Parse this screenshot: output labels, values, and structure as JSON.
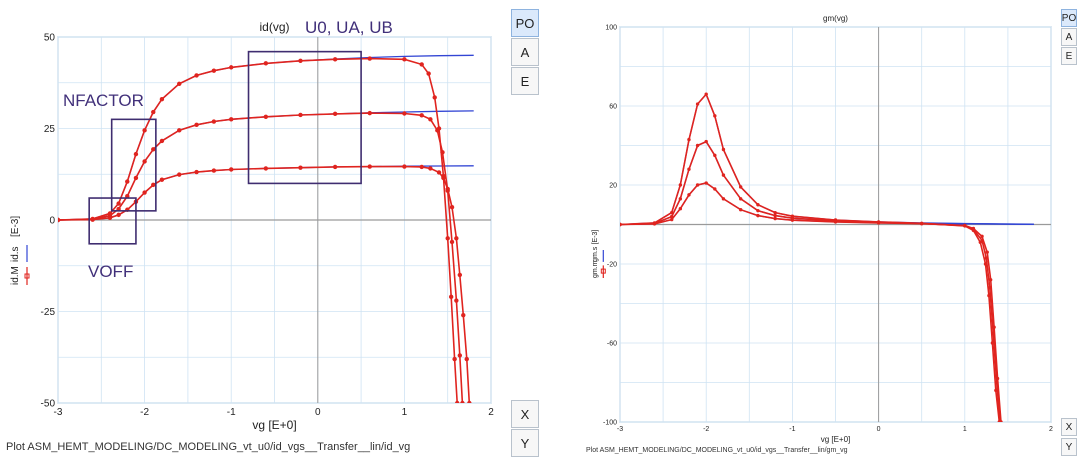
{
  "colors": {
    "model": "#3346d4",
    "measured": "#e0241f",
    "grid": "#cfe3f3",
    "axis": "#9a9a9a",
    "box": "#3f2d70",
    "annot": "#41307a"
  },
  "chart_data": [
    {
      "type": "line",
      "title": "id(vg)",
      "xlabel": "vg  [E+0]",
      "ylabel_legend": [
        "id.M",
        "id.s"
      ],
      "ylabel_unit": "[E-3]",
      "xlim": [
        -3,
        2
      ],
      "ylim": [
        -50,
        50
      ],
      "xticks": [
        -3,
        -2,
        -1,
        0,
        1,
        2
      ],
      "yticks": [
        -50,
        -25,
        0,
        25,
        50
      ],
      "grid": true,
      "annotations": [
        "U0, UA, UB",
        "NFACTOR",
        "VOFF"
      ],
      "series": [
        {
          "name": "id.s",
          "style": "model",
          "curves": [
            {
              "x": [
                -3,
                -2.6,
                -2.4,
                -2.3,
                -2.2,
                -2.1,
                -2.0,
                -1.9,
                -1.8,
                -1.6,
                -1.4,
                -1.2,
                -1.0,
                -0.6,
                -0.2,
                0.2,
                0.6,
                1.0,
                1.4,
                1.8
              ],
              "y": [
                0,
                0.1,
                0.6,
                1.4,
                2.8,
                5.0,
                7.5,
                9.6,
                11.0,
                12.4,
                13.1,
                13.5,
                13.8,
                14.1,
                14.3,
                14.5,
                14.6,
                14.7,
                14.75,
                14.8
              ]
            },
            {
              "x": [
                -3,
                -2.6,
                -2.4,
                -2.3,
                -2.2,
                -2.1,
                -2.0,
                -1.9,
                -1.8,
                -1.6,
                -1.4,
                -1.2,
                -1.0,
                -0.6,
                -0.2,
                0.2,
                0.6,
                1.0,
                1.4,
                1.8
              ],
              "y": [
                0,
                0.2,
                1.2,
                3.0,
                6.5,
                11.5,
                16.0,
                19.3,
                21.6,
                24.5,
                26.0,
                26.9,
                27.5,
                28.2,
                28.7,
                29.0,
                29.3,
                29.5,
                29.7,
                29.8
              ]
            },
            {
              "x": [
                -3,
                -2.6,
                -2.4,
                -2.3,
                -2.2,
                -2.1,
                -2.0,
                -1.9,
                -1.8,
                -1.6,
                -1.4,
                -1.2,
                -1.0,
                -0.6,
                -0.2,
                0.2,
                0.6,
                1.0,
                1.4,
                1.8
              ],
              "y": [
                0,
                0.3,
                1.8,
                4.5,
                10.5,
                18.0,
                24.5,
                29.5,
                33.0,
                37.2,
                39.5,
                40.8,
                41.7,
                42.8,
                43.5,
                44.0,
                44.4,
                44.7,
                44.9,
                45.0
              ]
            }
          ]
        },
        {
          "name": "id.M",
          "style": "measured",
          "curves": [
            {
              "x": [
                -3,
                -2.6,
                -2.4,
                -2.3,
                -2.2,
                -2.1,
                -2.0,
                -1.9,
                -1.8,
                -1.6,
                -1.4,
                -1.2,
                -1.0,
                -0.6,
                -0.2,
                0.2,
                0.6,
                1.0,
                1.2,
                1.3,
                1.4,
                1.45,
                1.5,
                1.55,
                1.6,
                1.64,
                1.68,
                1.72,
                1.75
              ],
              "y": [
                0,
                0.1,
                0.6,
                1.4,
                2.8,
                5.0,
                7.5,
                9.6,
                11.0,
                12.4,
                13.1,
                13.5,
                13.8,
                14.1,
                14.3,
                14.5,
                14.6,
                14.6,
                14.5,
                14.1,
                13.0,
                11.5,
                8.5,
                3.5,
                -5,
                -15,
                -26,
                -38,
                -50
              ]
            },
            {
              "x": [
                -3,
                -2.6,
                -2.4,
                -2.3,
                -2.2,
                -2.1,
                -2.0,
                -1.9,
                -1.8,
                -1.6,
                -1.4,
                -1.2,
                -1.0,
                -0.6,
                -0.2,
                0.2,
                0.6,
                1.0,
                1.2,
                1.3,
                1.38,
                1.44,
                1.5,
                1.55,
                1.6,
                1.64,
                1.67
              ],
              "y": [
                0,
                0.2,
                1.2,
                3.0,
                6.5,
                11.5,
                16.0,
                19.3,
                21.6,
                24.5,
                26.0,
                26.9,
                27.5,
                28.2,
                28.7,
                29.0,
                29.2,
                29.1,
                28.6,
                27.5,
                24.5,
                18.5,
                8.0,
                -6.0,
                -22.0,
                -37.0,
                -50
              ]
            },
            {
              "x": [
                -3,
                -2.6,
                -2.4,
                -2.3,
                -2.2,
                -2.1,
                -2.0,
                -1.9,
                -1.8,
                -1.6,
                -1.4,
                -1.2,
                -1.0,
                -0.6,
                -0.2,
                0.2,
                0.6,
                1.0,
                1.2,
                1.28,
                1.35,
                1.4,
                1.45,
                1.5,
                1.54,
                1.58,
                1.61
              ],
              "y": [
                0,
                0.3,
                1.8,
                4.5,
                10.5,
                18.0,
                24.5,
                29.5,
                33.0,
                37.2,
                39.5,
                40.8,
                41.7,
                42.8,
                43.5,
                43.9,
                44.1,
                43.9,
                42.5,
                40.0,
                33.5,
                25.0,
                12.0,
                -5.0,
                -21.0,
                -38.0,
                -50
              ]
            }
          ]
        }
      ]
    },
    {
      "type": "line",
      "title": "gm(vg)",
      "xlabel": "vg  [E+0]",
      "ylabel_legend": [
        "gm.m",
        "gm.s"
      ],
      "ylabel_unit": "[E-3]",
      "xlim": [
        -3,
        2
      ],
      "ylim": [
        -100,
        100
      ],
      "xticks": [
        -3,
        -2,
        -1,
        0,
        1,
        2
      ],
      "yticks": [
        -100,
        -60,
        -20,
        20,
        60,
        100
      ],
      "grid": true,
      "series": [
        {
          "name": "gm.s",
          "style": "model",
          "curves": [
            {
              "x": [
                -3,
                -2.6,
                -2.4,
                -2.3,
                -2.2,
                -2.1,
                -2.0,
                -1.9,
                -1.8,
                -1.6,
                -1.4,
                -1.2,
                -1.0,
                -0.5,
                0,
                0.5,
                1.0,
                1.4,
                1.8
              ],
              "y": [
                0,
                0.3,
                2.5,
                8,
                15,
                20,
                21,
                18,
                13,
                7.5,
                4.5,
                3,
                2.2,
                1.3,
                0.8,
                0.5,
                0.3,
                0.2,
                0.1
              ]
            },
            {
              "x": [
                -3,
                -2.6,
                -2.4,
                -2.3,
                -2.2,
                -2.1,
                -2.0,
                -1.9,
                -1.8,
                -1.6,
                -1.4,
                -1.2,
                -1.0,
                -0.5,
                0,
                0.5,
                1.0,
                1.4,
                1.8
              ],
              "y": [
                0,
                0.5,
                4,
                13,
                28,
                40,
                42,
                35,
                25,
                13,
                7,
                4.5,
                3.2,
                1.8,
                1.0,
                0.6,
                0.4,
                0.25,
                0.1
              ]
            },
            {
              "x": [
                -3,
                -2.6,
                -2.4,
                -2.3,
                -2.2,
                -2.1,
                -2.0,
                -1.9,
                -1.8,
                -1.6,
                -1.4,
                -1.2,
                -1.0,
                -0.5,
                0,
                0.5,
                1.0,
                1.4,
                1.8
              ],
              "y": [
                0,
                0.8,
                6,
                20,
                43,
                61,
                66,
                55,
                38,
                19,
                10,
                6,
                4.2,
                2.3,
                1.3,
                0.8,
                0.5,
                0.3,
                0.15
              ]
            }
          ]
        },
        {
          "name": "gm.m",
          "style": "measured",
          "curves": [
            {
              "x": [
                -3,
                -2.6,
                -2.4,
                -2.3,
                -2.2,
                -2.1,
                -2.0,
                -1.9,
                -1.8,
                -1.6,
                -1.4,
                -1.2,
                -1.0,
                -0.5,
                0,
                0.5,
                1.0,
                1.1,
                1.2,
                1.26,
                1.3,
                1.34,
                1.38,
                1.42
              ],
              "y": [
                0,
                0.3,
                2.5,
                8,
                15,
                20,
                21,
                18,
                13,
                7.5,
                4.5,
                3,
                2.2,
                1.3,
                0.8,
                0.4,
                -0.5,
                -2,
                -6,
                -14,
                -28,
                -52,
                -78,
                -100
              ]
            },
            {
              "x": [
                -3,
                -2.6,
                -2.4,
                -2.3,
                -2.2,
                -2.1,
                -2.0,
                -1.9,
                -1.8,
                -1.6,
                -1.4,
                -1.2,
                -1.0,
                -0.5,
                0,
                0.5,
                1.0,
                1.1,
                1.2,
                1.25,
                1.29,
                1.33,
                1.37,
                1.41
              ],
              "y": [
                0,
                0.5,
                4,
                13,
                28,
                40,
                42,
                35,
                25,
                13,
                7,
                4.5,
                3.2,
                1.8,
                1.0,
                0.5,
                -0.6,
                -2.5,
                -8,
                -17,
                -32,
                -55,
                -80,
                -100
              ]
            },
            {
              "x": [
                -3,
                -2.6,
                -2.4,
                -2.3,
                -2.2,
                -2.1,
                -2.0,
                -1.9,
                -1.8,
                -1.6,
                -1.4,
                -1.2,
                -1.0,
                -0.5,
                0,
                0.5,
                1.0,
                1.1,
                1.18,
                1.24,
                1.28,
                1.32,
                1.36,
                1.4
              ],
              "y": [
                0,
                0.8,
                6,
                20,
                43,
                61,
                66,
                55,
                38,
                19,
                10,
                6,
                4.2,
                2.3,
                1.3,
                0.6,
                -0.7,
                -3,
                -9,
                -20,
                -36,
                -60,
                -84,
                -100
              ]
            }
          ]
        }
      ]
    }
  ],
  "left_panel": {
    "footer": "Plot ASM_HEMT_MODELING/DC_MODELING_vt_u0/id_vgs__Transfer__lin/id_vg",
    "side_buttons": [
      "PO",
      "A",
      "E"
    ],
    "axis_buttons": [
      "X",
      "Y"
    ]
  },
  "right_panel": {
    "footer": "Plot ASM_HEMT_MODELING/DC_MODELING_vt_u0/id_vgs__Transfer__lin/gm_vg",
    "side_buttons": [
      "PO",
      "A",
      "E"
    ],
    "axis_buttons": [
      "X",
      "Y"
    ]
  }
}
